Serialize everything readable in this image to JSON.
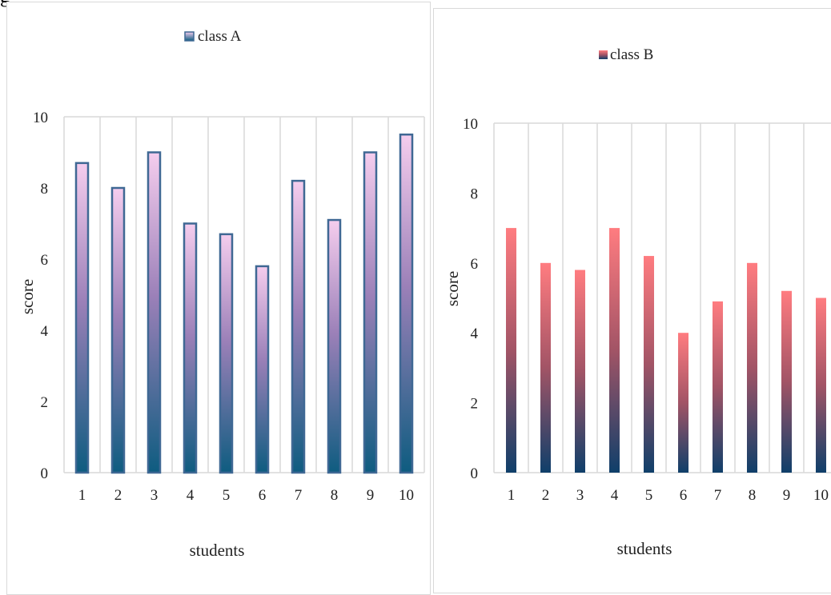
{
  "page": {
    "fragment_text": "g"
  },
  "chart_data": [
    {
      "type": "bar",
      "categories": [
        "1",
        "2",
        "3",
        "4",
        "5",
        "6",
        "7",
        "8",
        "9",
        "10"
      ],
      "series": [
        {
          "name": "class A",
          "values": [
            8.7,
            8.0,
            9.0,
            7.0,
            6.7,
            5.8,
            8.2,
            7.1,
            9.0,
            9.5
          ]
        }
      ],
      "xlabel": "students",
      "ylabel": "score",
      "ylim": [
        0,
        10
      ],
      "yticks": [
        "0",
        "2",
        "4",
        "6",
        "8",
        "10"
      ],
      "grid": true,
      "legend": "top-center",
      "colors": {
        "bar_top": "#f5cdee",
        "bar_mid": "#9b80b8",
        "bar_bottom": "#0e5c80",
        "bar_border": "#3f6894"
      }
    },
    {
      "type": "bar",
      "categories": [
        "1",
        "2",
        "3",
        "4",
        "5",
        "6",
        "7",
        "8",
        "9",
        "10"
      ],
      "series": [
        {
          "name": "class B",
          "values": [
            7.0,
            6.0,
            5.8,
            7.0,
            6.2,
            4.0,
            4.9,
            6.0,
            5.2,
            5.0
          ]
        }
      ],
      "xlabel": "students",
      "ylabel": "score",
      "ylim": [
        0,
        10
      ],
      "yticks": [
        "0",
        "2",
        "4",
        "6",
        "8",
        "10"
      ],
      "grid": true,
      "legend": "top-center",
      "colors": {
        "bar_top": "#ff7c80",
        "bar_mid": "#a25466",
        "bar_bottom": "#0f3f6a"
      }
    }
  ]
}
